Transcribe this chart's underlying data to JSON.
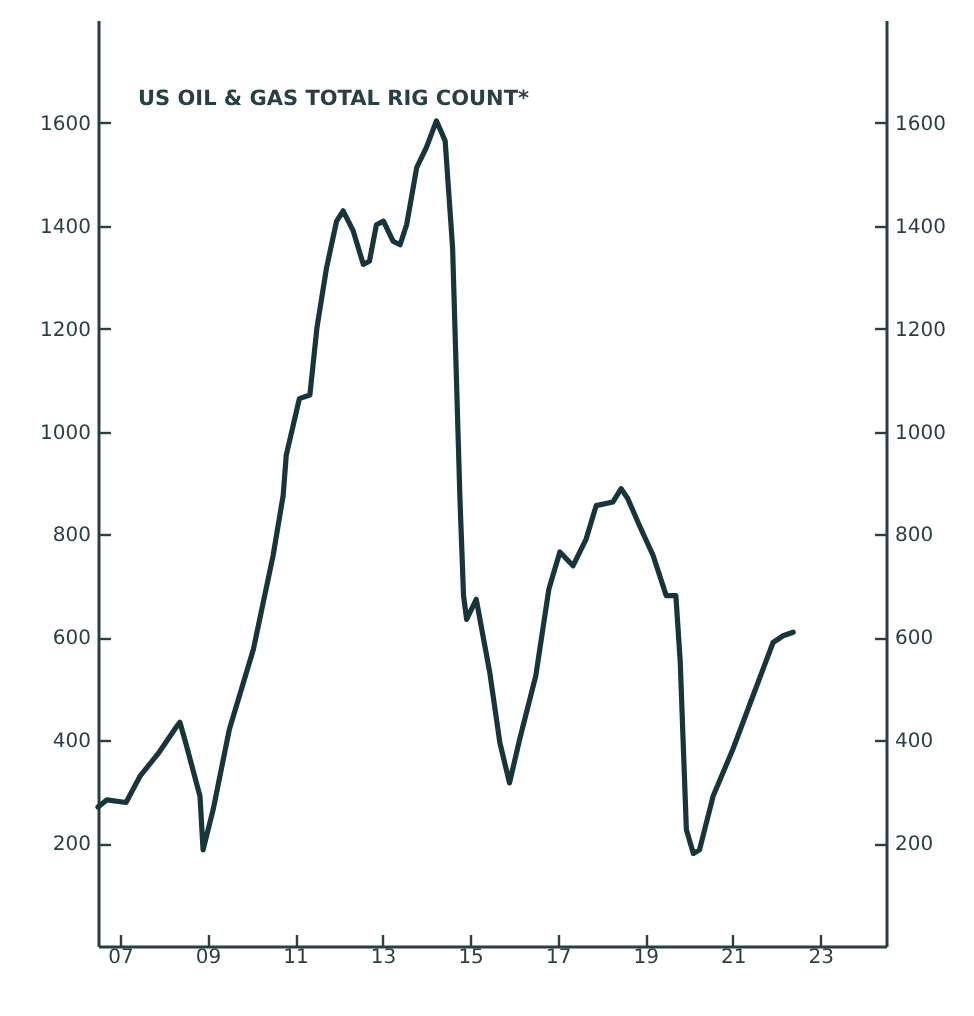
{
  "chart_data": {
    "type": "line",
    "title": "US OIL & GAS TOTAL RIG COUNT*",
    "x": [
      6.5,
      6.7,
      7.14,
      7.46,
      7.9,
      8.3,
      8.37,
      8.5,
      8.83,
      8.9,
      9.13,
      9.5,
      10.05,
      10.5,
      10.73,
      10.8,
      11.1,
      11.34,
      11.5,
      11.72,
      11.95,
      12.1,
      12.33,
      12.56,
      12.7,
      12.86,
      13.02,
      13.24,
      13.4,
      13.55,
      13.78,
      14.0,
      14.23,
      14.43,
      14.6,
      14.77,
      14.85,
      14.92,
      15.14,
      15.45,
      15.68,
      15.9,
      16.13,
      16.5,
      16.8,
      17.05,
      17.35,
      17.65,
      17.88,
      18.26,
      18.45,
      18.6,
      18.87,
      19.18,
      19.48,
      19.7,
      19.8,
      19.94,
      20.1,
      20.24,
      20.55,
      21.0,
      21.46,
      21.92,
      22.15,
      22.38
    ],
    "series": [
      {
        "color": "#17353a",
        "values": [
          270,
          284,
          279,
          330,
          377,
          427,
          435,
          396,
          291,
          187,
          265,
          421,
          577,
          759,
          876,
          954,
          1064,
          1071,
          1201,
          1318,
          1409,
          1429,
          1390,
          1325,
          1331,
          1402,
          1409,
          1370,
          1363,
          1402,
          1513,
          1552,
          1604,
          1565,
          1357,
          864,
          681,
          635,
          674,
          531,
          395,
          317,
          401,
          525,
          694,
          766,
          739,
          791,
          856,
          863,
          889,
          870,
          817,
          759,
          681,
          681,
          552,
          226,
          180,
          187,
          291,
          382,
          486,
          590,
          603,
          610
        ]
      }
    ],
    "xlim": [
      6.5,
      24.5
    ],
    "xticks": [
      {
        "value": 7,
        "label": "07"
      },
      {
        "value": 9,
        "label": "09"
      },
      {
        "value": 11,
        "label": "11"
      },
      {
        "value": 13,
        "label": "13"
      },
      {
        "value": 15,
        "label": "15"
      },
      {
        "value": 17,
        "label": "17"
      },
      {
        "value": 19,
        "label": "19"
      },
      {
        "value": 21,
        "label": "21"
      },
      {
        "value": 23,
        "label": "23"
      }
    ],
    "ylim": [
      0,
      1800
    ],
    "yticks": [
      200,
      400,
      600,
      800,
      1000,
      1200,
      1400,
      1600
    ],
    "y2lim": [
      0,
      1800
    ],
    "y2ticks": [
      200,
      400,
      600,
      800,
      1000,
      1200,
      1400,
      1600
    ],
    "grid": false,
    "marker": "none",
    "line_style": "solid"
  }
}
